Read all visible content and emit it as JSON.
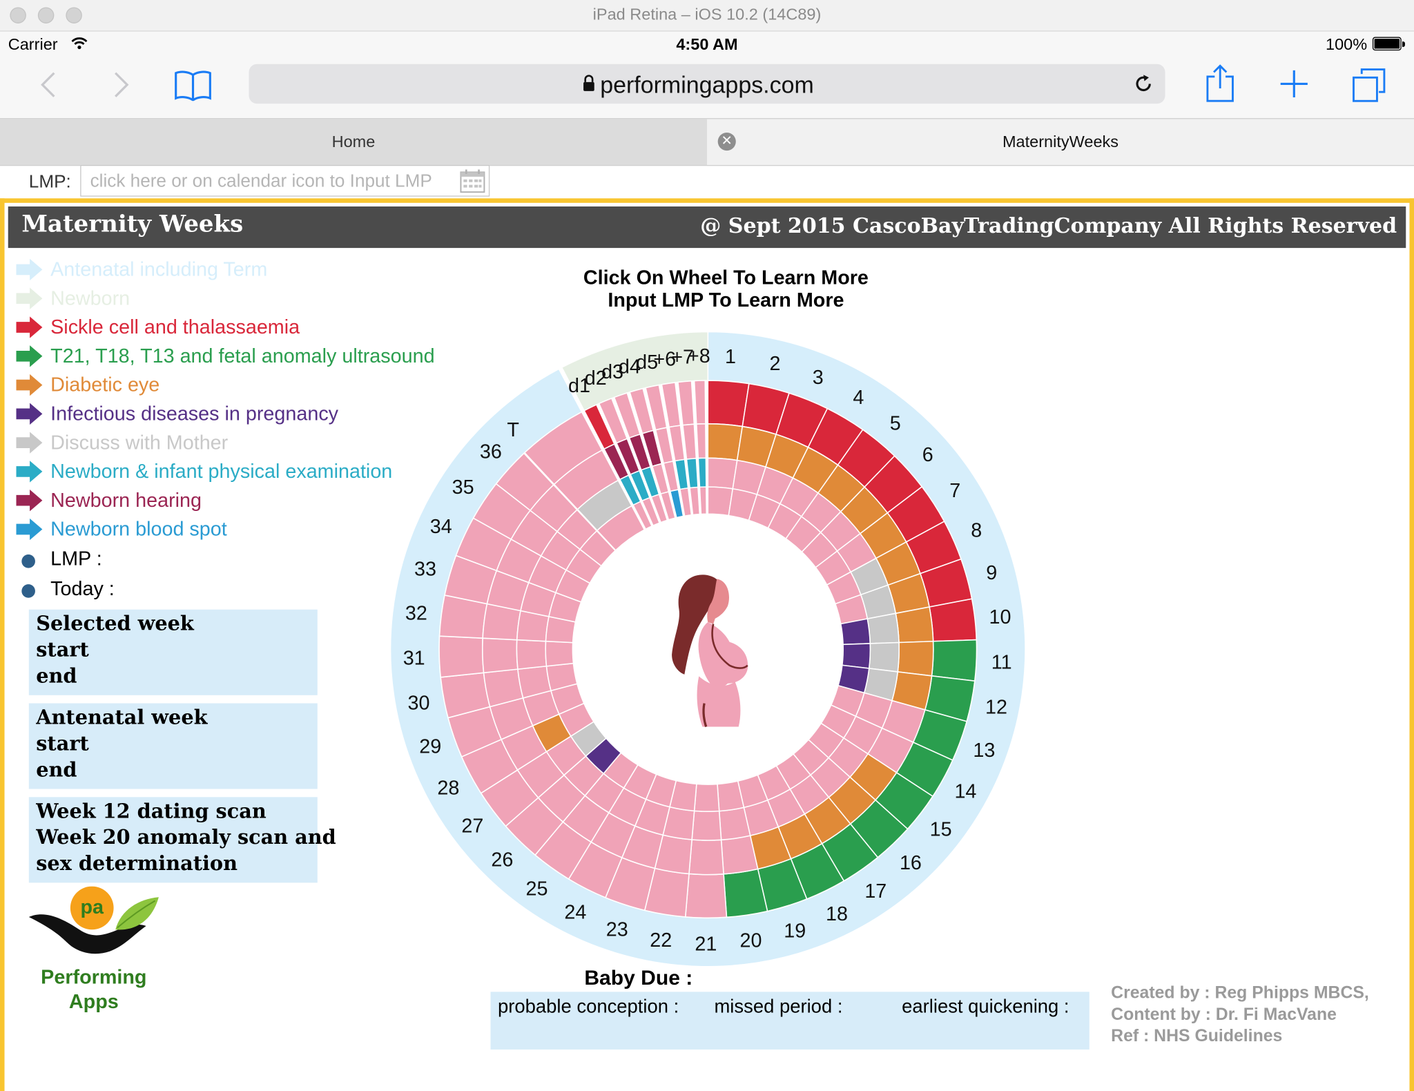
{
  "simulator": {
    "title": "iPad Retina – iOS 10.2 (14C89)"
  },
  "statusbar": {
    "carrier": "Carrier",
    "time": "4:50 AM",
    "battery": "100%"
  },
  "browser": {
    "url": "performingapps.com"
  },
  "tabs": [
    {
      "label": "Home",
      "active": false
    },
    {
      "label": "MaternityWeeks",
      "active": true
    }
  ],
  "lmp_input": {
    "label": "LMP:",
    "placeholder": "click here or on calendar icon to Input LMP"
  },
  "header": {
    "title": "Maternity Weeks",
    "copyright": "@ Sept 2015 CascoBayTradingCompany All Rights Reserved"
  },
  "legend": [
    {
      "label": "Antenatal including Term",
      "color": "#d6eefb"
    },
    {
      "label": "Newborn",
      "color": "#e6efe3"
    },
    {
      "label": "Sickle cell and thalassaemia",
      "color": "#d9273a"
    },
    {
      "label": "T21, T18, T13 and fetal anomaly ultrasound",
      "color": "#2a9e4e"
    },
    {
      "label": "Diabetic eye",
      "color": "#e08a38"
    },
    {
      "label": "Infectious diseases in pregnancy",
      "color": "#553086"
    },
    {
      "label": "Discuss with Mother",
      "color": "#c8c8c8"
    },
    {
      "label": "Newborn & infant physical examination",
      "color": "#2bacc6"
    },
    {
      "label": "Newborn hearing",
      "color": "#9b2553"
    },
    {
      "label": "Newborn blood spot",
      "color": "#2a9bd3"
    }
  ],
  "markers": {
    "lmp": "LMP :",
    "today": "Today :"
  },
  "selected_box": [
    "Selected week",
    "start",
    "end"
  ],
  "antenatal_box": [
    "Antenatal week",
    "start",
    "end"
  ],
  "scan_box": [
    "Week 12 dating scan",
    "Week 20 anomaly scan and",
    "sex determination"
  ],
  "logo": {
    "mark": "pa",
    "line1": "Performing",
    "line2": "Apps"
  },
  "wheel": {
    "instruction1": "Click On Wheel To Learn More",
    "instruction2": "Input LMP To Learn More",
    "week_labels": [
      "1",
      "2",
      "3",
      "4",
      "5",
      "6",
      "7",
      "8",
      "9",
      "10",
      "11",
      "12",
      "13",
      "14",
      "15",
      "16",
      "17",
      "18",
      "19",
      "20",
      "21",
      "22",
      "23",
      "24",
      "25",
      "26",
      "27",
      "28",
      "29",
      "30",
      "31",
      "32",
      "33",
      "34",
      "35",
      "36"
    ],
    "term_label": "T",
    "newborn_day_labels": [
      "d1",
      "d2",
      "d3",
      "d4",
      "d5",
      "+6",
      "+7",
      "+8"
    ],
    "colors": {
      "antenatal": "#d6eefb",
      "newborn": "#e6efe3",
      "base": "#f0a3b7",
      "gap": "#ffffff"
    }
  },
  "due": {
    "title": "Baby Due :",
    "probable_conception": "probable conception :",
    "missed_period": "missed period :",
    "earliest_quickening": "earliest quickening :"
  },
  "credits": [
    "Created by : Reg Phipps MBCS,",
    "Content by : Dr. Fi MacVane",
    "Ref : NHS Guidelines"
  ]
}
